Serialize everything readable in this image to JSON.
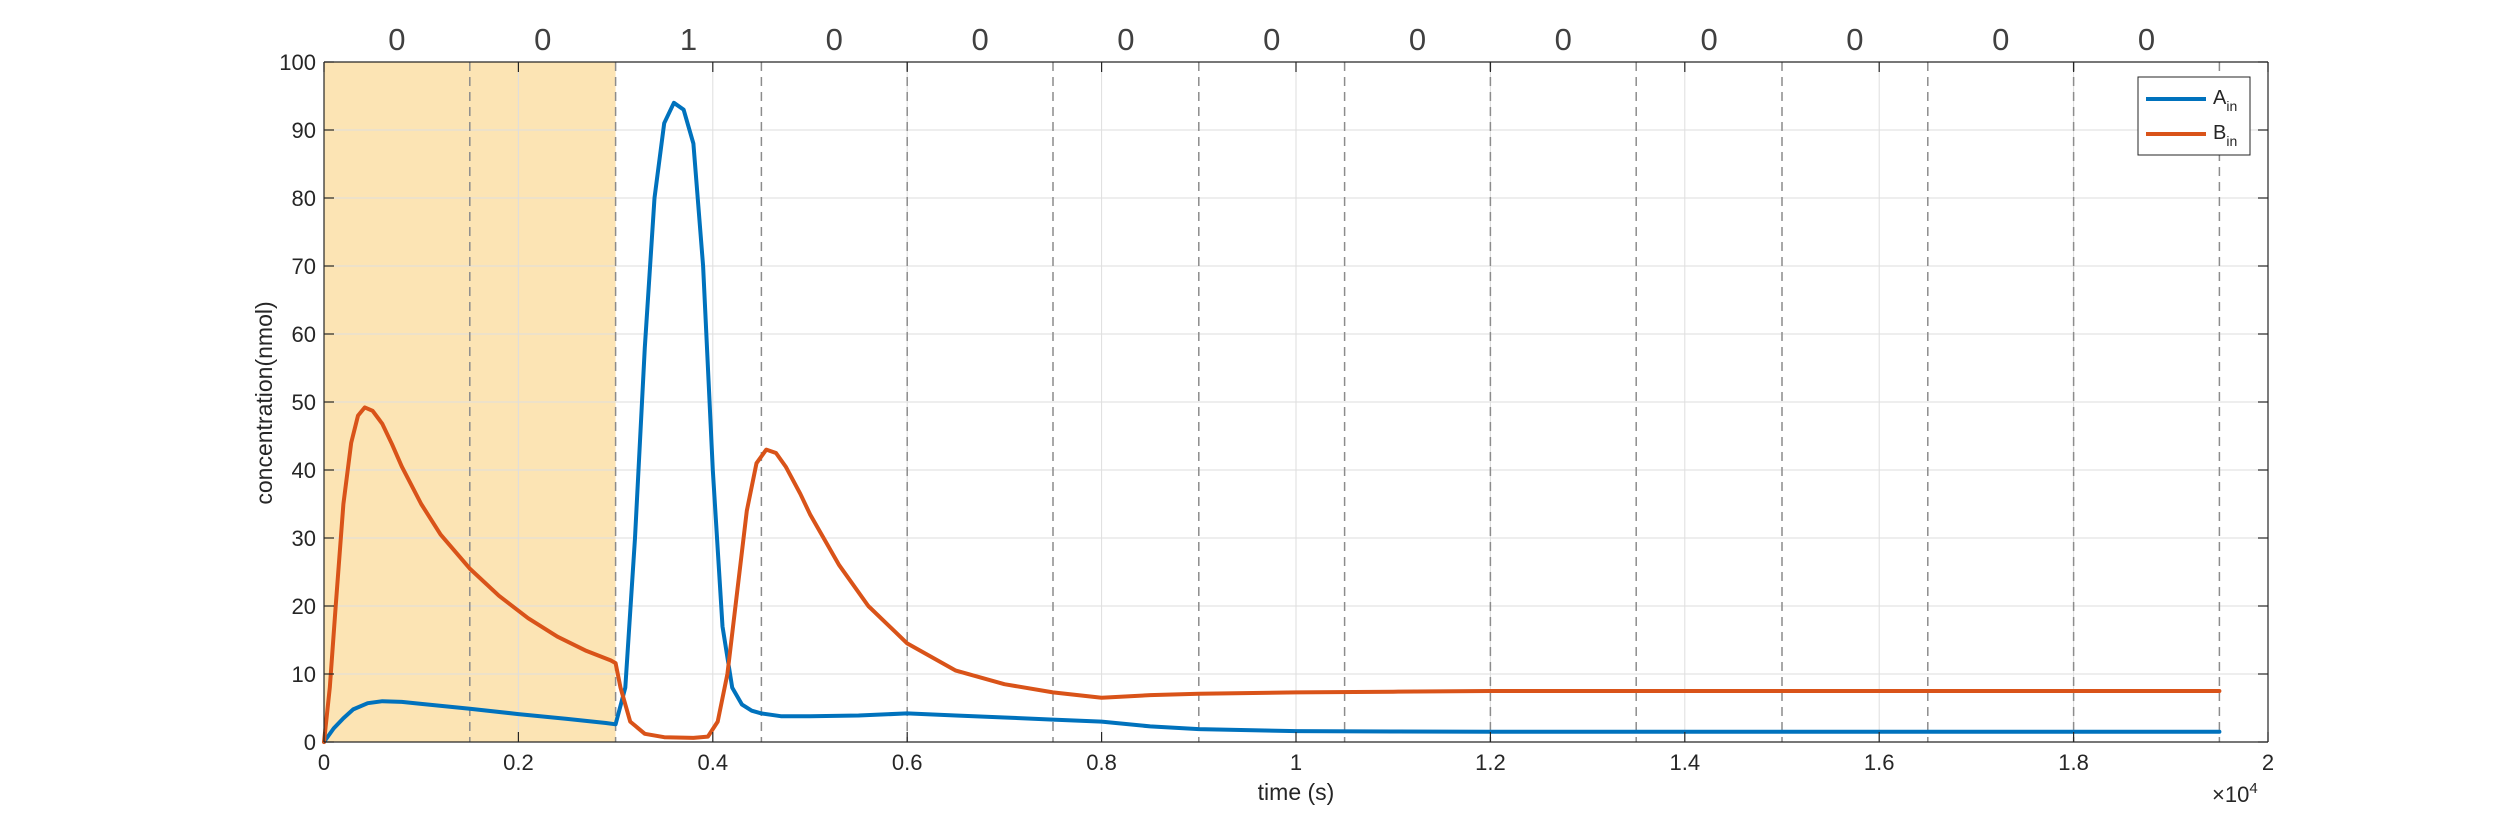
{
  "chart_data": {
    "type": "line",
    "xlabel": "time (s)",
    "ylabel": "concentration(nmol)",
    "x_exponent_label": "×10",
    "x_exponent_power": "4",
    "xlim": [
      0,
      20000
    ],
    "ylim": [
      0,
      100
    ],
    "x_ticks": [
      0,
      2000,
      4000,
      6000,
      8000,
      10000,
      12000,
      14000,
      16000,
      18000,
      20000
    ],
    "x_tick_labels": [
      "0",
      "0.2",
      "0.4",
      "0.6",
      "0.8",
      "1",
      "1.2",
      "1.4",
      "1.6",
      "1.8",
      "2"
    ],
    "y_ticks": [
      0,
      10,
      20,
      30,
      40,
      50,
      60,
      70,
      80,
      90,
      100
    ],
    "y_tick_labels": [
      "0",
      "10",
      "20",
      "30",
      "40",
      "50",
      "60",
      "70",
      "80",
      "90",
      "100"
    ],
    "grid": true,
    "legend_position": "top-right",
    "shaded_region": {
      "x": [
        0,
        3000
      ],
      "color": "#FCE4B4"
    },
    "segment_boundaries": [
      1500,
      3000,
      4500,
      6000,
      7500,
      9000,
      10500,
      12000,
      13500,
      15000,
      16500,
      18000,
      19500
    ],
    "bit_labels": [
      {
        "x": 750,
        "text": "0"
      },
      {
        "x": 2250,
        "text": "0"
      },
      {
        "x": 3750,
        "text": "1"
      },
      {
        "x": 5250,
        "text": "0"
      },
      {
        "x": 6750,
        "text": "0"
      },
      {
        "x": 8250,
        "text": "0"
      },
      {
        "x": 9750,
        "text": "0"
      },
      {
        "x": 11250,
        "text": "0"
      },
      {
        "x": 12750,
        "text": "0"
      },
      {
        "x": 14250,
        "text": "0"
      },
      {
        "x": 15750,
        "text": "0"
      },
      {
        "x": 17250,
        "text": "0"
      },
      {
        "x": 18750,
        "text": "0"
      }
    ],
    "series": [
      {
        "name": "A",
        "name_subscript": "in",
        "color": "#0072BD",
        "x": [
          0,
          100,
          200,
          300,
          450,
          600,
          800,
          1000,
          1500,
          2000,
          2500,
          2900,
          3000,
          3100,
          3200,
          3300,
          3400,
          3500,
          3600,
          3700,
          3800,
          3900,
          4000,
          4100,
          4200,
          4300,
          4400,
          4500,
          4700,
          5000,
          5500,
          6000,
          6500,
          7000,
          7500,
          8000,
          8500,
          9000,
          10000,
          11000,
          12000,
          14000,
          16000,
          18000,
          19500
        ],
        "y": [
          0,
          2,
          3.5,
          4.8,
          5.7,
          6.0,
          5.9,
          5.6,
          4.9,
          4.1,
          3.4,
          2.8,
          2.6,
          8,
          30,
          58,
          80,
          91,
          94,
          93,
          88,
          70,
          40,
          17,
          8,
          5.5,
          4.6,
          4.2,
          3.8,
          3.8,
          3.9,
          4.2,
          3.9,
          3.6,
          3.3,
          3.0,
          2.3,
          1.9,
          1.6,
          1.55,
          1.5,
          1.5,
          1.5,
          1.5,
          1.5
        ]
      },
      {
        "name": "B",
        "name_subscript": "in",
        "color": "#D95319",
        "x": [
          0,
          60,
          120,
          200,
          280,
          350,
          420,
          500,
          600,
          700,
          800,
          1000,
          1200,
          1500,
          1800,
          2100,
          2400,
          2700,
          2950,
          3000,
          3050,
          3150,
          3300,
          3500,
          3800,
          3950,
          4050,
          4150,
          4250,
          4350,
          4450,
          4550,
          4650,
          4750,
          4900,
          5000,
          5300,
          5600,
          6000,
          6500,
          7000,
          7500,
          8000,
          8500,
          9000,
          10000,
          11000,
          12000,
          14000,
          16000,
          18000,
          19500
        ],
        "y": [
          0,
          8,
          20,
          35,
          44,
          48,
          49.2,
          48.7,
          46.8,
          43.8,
          40.5,
          35,
          30.5,
          25.5,
          21.5,
          18.2,
          15.5,
          13.4,
          12.0,
          11.6,
          8,
          3,
          1.2,
          0.7,
          0.6,
          0.8,
          3,
          10,
          22,
          34,
          41,
          43,
          42.5,
          40.5,
          36.5,
          33.5,
          26,
          20,
          14.5,
          10.5,
          8.5,
          7.3,
          6.5,
          6.9,
          7.1,
          7.3,
          7.4,
          7.5,
          7.5,
          7.5,
          7.5,
          7.5
        ]
      }
    ]
  }
}
